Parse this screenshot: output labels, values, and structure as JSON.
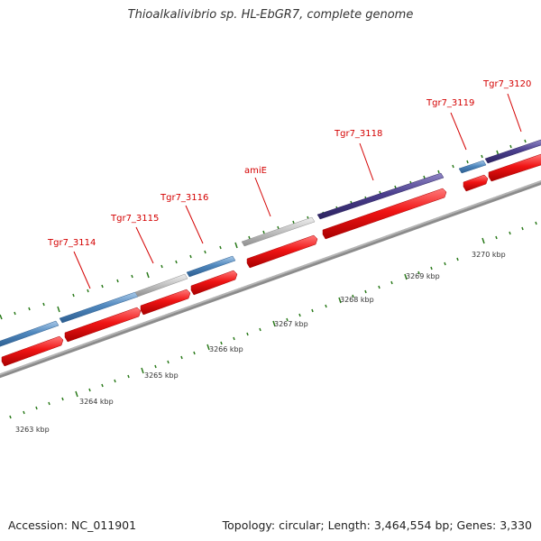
{
  "title": "Thioalkalivibrio sp. HL-EbGR7, complete genome",
  "footer": {
    "accession": "Accession: NC_011901",
    "summary": "Topology: circular; Length: 3,464,554 bp; Genes: 3,330"
  },
  "colors": {
    "gene_blue": "#4f87bd",
    "gene_gray": "#bdbdbd",
    "gene_purple": "#4b3f8e",
    "cds_red": "#f01414",
    "tick_green": "#2a7a1a",
    "backbone": "#8a8a8a",
    "label_red": "#d40000"
  },
  "scale_labels": [
    "3263 kbp",
    "3264 kbp",
    "3265 kbp",
    "3266 kbp",
    "3267 kbp",
    "3268 kbp",
    "3269 kbp",
    "3270 kbp"
  ],
  "gene_labels": [
    "Tgr7_3114",
    "Tgr7_3115",
    "Tgr7_3116",
    "amiE",
    "Tgr7_3118",
    "Tgr7_3119",
    "Tgr7_3120"
  ],
  "gene_tracks": [
    {
      "name": "Tgr7_3114",
      "color": "gene_blue"
    },
    {
      "name": "Tgr7_3115",
      "color": "gene_gray"
    },
    {
      "name": "Tgr7_3116",
      "color": "gene_blue"
    },
    {
      "name": "amiE",
      "color": "gene_gray"
    },
    {
      "name": "Tgr7_3118",
      "color": "gene_purple"
    },
    {
      "name": "Tgr7_3119",
      "color": "gene_blue"
    },
    {
      "name": "Tgr7_3120",
      "color": "gene_purple"
    }
  ]
}
